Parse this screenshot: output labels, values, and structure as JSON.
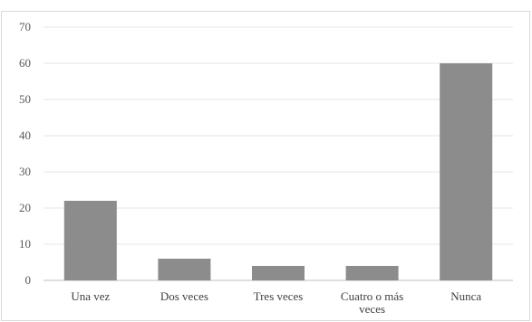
{
  "chart_data": {
    "type": "bar",
    "categories": [
      [
        "Una  vez"
      ],
      [
        "Dos veces"
      ],
      [
        "Tres veces"
      ],
      [
        "Cuatro  o más",
        "veces"
      ],
      [
        "Nunca"
      ]
    ],
    "values": [
      22,
      6,
      4,
      4,
      60
    ],
    "ylim": [
      0,
      70
    ],
    "yticks": [
      0,
      10,
      20,
      30,
      40,
      50,
      60,
      70
    ],
    "grid": true,
    "legend": "none",
    "colors": {
      "bar": "#8c8c8c",
      "grid": "#e6e6e6",
      "axis": "#bfbfbf",
      "frame": "#d9d9d9"
    }
  }
}
